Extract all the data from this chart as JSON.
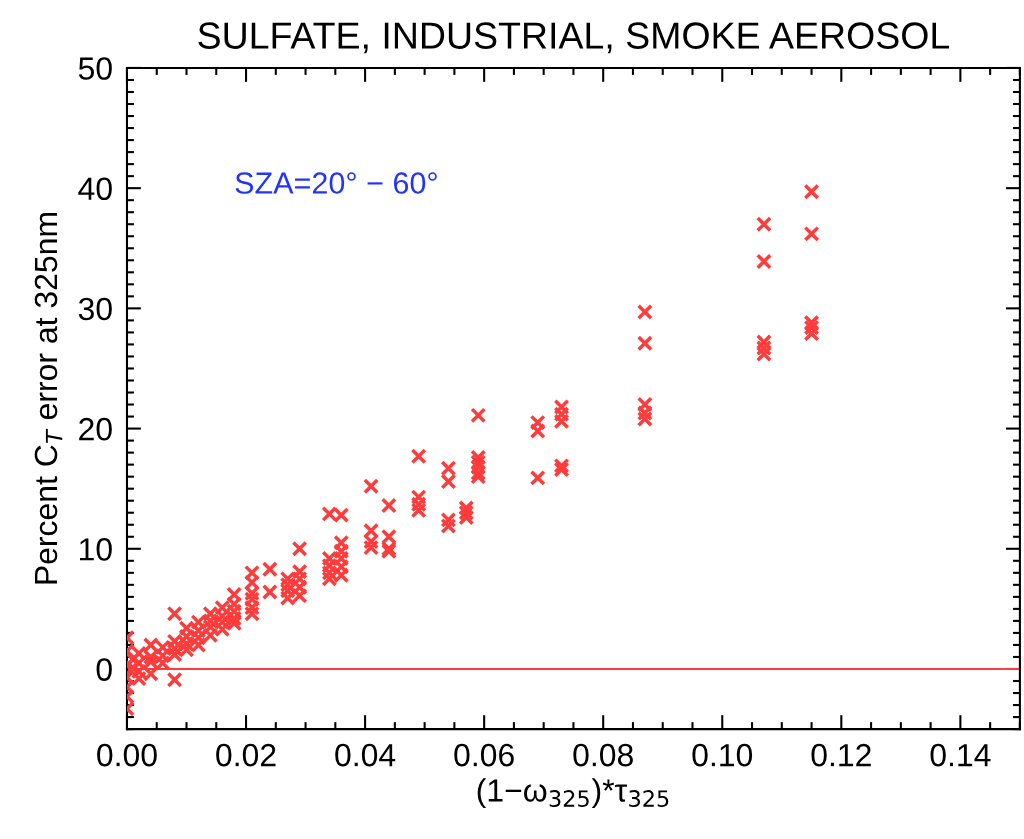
{
  "chart_data": {
    "type": "scatter",
    "title": "SULFATE, INDUSTRIAL, SMOKE AEROSOL",
    "xlabel": "(1−ω$_{325}$)*τ$_{325}$",
    "ylabel": "Percent C$_{T}$ error at 325nm",
    "annotations": [
      "SZA=20° − 60°"
    ],
    "x": [
      0.115,
      0.115,
      0.115,
      0.115,
      0.115,
      0.107,
      0.107,
      0.107,
      0.107,
      0.107,
      0.087,
      0.087,
      0.087,
      0.087,
      0.087,
      0.073,
      0.073,
      0.073,
      0.073,
      0.073,
      0.069,
      0.069,
      0.069,
      0.059,
      0.059,
      0.059,
      0.059,
      0.059,
      0.059,
      0.057,
      0.057,
      0.057,
      0.054,
      0.054,
      0.054,
      0.054,
      0.049,
      0.049,
      0.049,
      0.049,
      0.044,
      0.044,
      0.044,
      0.044,
      0.041,
      0.041,
      0.041,
      0.041,
      0.036,
      0.036,
      0.036,
      0.036,
      0.036,
      0.036,
      0.034,
      0.034,
      0.034,
      0.034,
      0.034,
      0.029,
      0.029,
      0.029,
      0.029,
      0.029,
      0.027,
      0.027,
      0.027,
      0.027,
      0.024,
      0.024,
      0.021,
      0.021,
      0.021,
      0.021,
      0.021,
      0.021,
      0.018,
      0.018,
      0.018,
      0.018,
      0.018,
      0.016,
      0.016,
      0.016,
      0.016,
      0.014,
      0.014,
      0.014,
      0.014,
      0.012,
      0.012,
      0.012,
      0.012,
      0.01,
      0.01,
      0.01,
      0.01,
      0.008,
      0.008,
      0.008,
      0.008,
      0.008,
      0.006,
      0.006,
      0.006,
      0.004,
      0.004,
      0.004,
      0.004,
      0.002,
      0.002,
      0.002,
      0.002,
      0.001,
      0.001,
      0.0,
      0.0,
      0.0,
      0.0,
      0.0,
      0.0,
      0.0
    ],
    "series": [
      {
        "color": "#ff3b3b",
        "values": [
          39.7,
          36.2,
          28.8,
          28.4,
          27.9,
          37.0,
          33.9,
          27.2,
          26.7,
          26.2,
          29.7,
          27.1,
          22.0,
          21.3,
          20.8,
          21.8,
          21.2,
          20.6,
          16.9,
          16.6,
          20.5,
          19.8,
          15.9,
          21.1,
          17.6,
          17.2,
          16.8,
          16.3,
          16.0,
          13.4,
          13.0,
          12.6,
          16.7,
          15.6,
          12.4,
          11.9,
          17.7,
          14.3,
          13.7,
          13.2,
          13.6,
          11.0,
          10.0,
          9.8,
          15.2,
          11.5,
          10.6,
          10.1,
          12.8,
          10.5,
          9.8,
          9.2,
          8.5,
          7.8,
          12.9,
          9.2,
          8.6,
          8.0,
          7.5,
          10.0,
          8.1,
          7.5,
          6.8,
          6.1,
          7.5,
          7.0,
          6.5,
          5.9,
          8.3,
          6.4,
          8.0,
          7.2,
          6.3,
          5.8,
          5.1,
          4.6,
          6.2,
          5.4,
          4.8,
          4.2,
          3.8,
          5.1,
          4.4,
          3.9,
          3.3,
          4.6,
          4.0,
          3.5,
          2.8,
          3.9,
          3.2,
          2.6,
          2.0,
          3.4,
          2.7,
          2.1,
          1.6,
          4.6,
          2.3,
          1.7,
          1.2,
          -0.9,
          1.8,
          1.1,
          0.5,
          2.0,
          1.0,
          0.6,
          -0.4,
          1.3,
          0.5,
          -0.2,
          -0.8,
          0.8,
          0.1,
          2.6,
          1.5,
          0.3,
          -0.7,
          -1.5,
          -2.3,
          -3.3
        ]
      }
    ],
    "marker": "cross",
    "xlim": [
      0,
      0.15
    ],
    "xticks": [
      {
        "value": 0,
        "label": "0.00"
      },
      {
        "value": 0.02,
        "label": "0.02"
      },
      {
        "value": 0.04,
        "label": "0.04"
      },
      {
        "value": 0.06,
        "label": "0.06"
      },
      {
        "value": 0.08,
        "label": "0.08"
      },
      {
        "value": 0.1,
        "label": "0.10"
      },
      {
        "value": 0.12,
        "label": "0.12"
      },
      {
        "value": 0.14,
        "label": "0.14"
      }
    ],
    "ylim": [
      -5,
      50
    ],
    "yticks": [
      0,
      10,
      20,
      30,
      40,
      50
    ],
    "grid": false,
    "ref_lines": [
      {
        "axis": "y",
        "value": 0,
        "color": "#ff3b3b",
        "line_style": "solid"
      }
    ]
  }
}
